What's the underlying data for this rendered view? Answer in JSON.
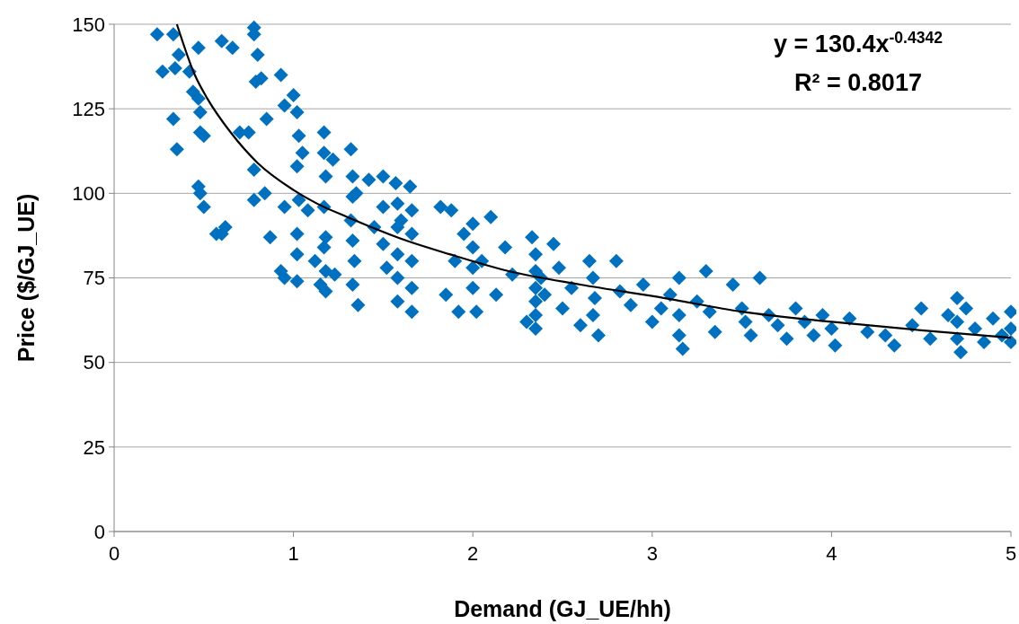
{
  "chart_data": {
    "type": "scatter",
    "xlabel": "Demand (GJ_UE/hh)",
    "ylabel": "Price ($/GJ_UE)",
    "xlim": [
      0,
      5
    ],
    "xticks": [
      0,
      1,
      2,
      3,
      4,
      5
    ],
    "ylim": [
      0,
      150
    ],
    "yticks": [
      0,
      25,
      50,
      75,
      100,
      125,
      150
    ],
    "grid": "y",
    "marker": "diamond",
    "annotations": [
      "y = 130.4x$^{-0.4342}$",
      "R² = 0.8017"
    ],
    "series": [
      {
        "color": "#0070c0",
        "x": [
          0.24,
          0.27,
          0.33,
          0.34,
          0.33,
          0.35,
          0.36,
          0.42,
          0.44,
          0.47,
          0.47,
          0.48,
          0.48,
          0.47,
          0.48,
          0.5,
          0.5,
          0.57,
          0.6,
          0.62,
          0.6,
          0.66,
          0.7,
          0.75,
          0.78,
          0.78,
          0.8,
          0.79,
          0.82,
          0.78,
          0.78,
          0.84,
          0.85,
          0.87,
          0.93,
          0.95,
          0.95,
          0.93,
          0.95,
          1.0,
          1.02,
          1.03,
          1.02,
          1.03,
          1.02,
          1.02,
          1.02,
          1.08,
          1.05,
          1.12,
          1.15,
          1.17,
          1.17,
          1.18,
          1.17,
          1.18,
          1.17,
          1.18,
          1.18,
          1.22,
          1.23,
          1.32,
          1.33,
          1.33,
          1.32,
          1.33,
          1.34,
          1.33,
          1.36,
          1.35,
          1.42,
          1.45,
          1.5,
          1.5,
          1.5,
          1.52,
          1.57,
          1.58,
          1.58,
          1.58,
          1.58,
          1.58,
          1.6,
          1.65,
          1.66,
          1.66,
          1.66,
          1.66,
          1.66,
          1.82,
          1.85,
          1.88,
          1.9,
          1.92,
          1.95,
          2.0,
          2.0,
          2.0,
          2.0,
          2.02,
          2.05,
          2.1,
          2.13,
          2.18,
          2.22,
          2.3,
          2.33,
          2.35,
          2.35,
          2.35,
          2.35,
          2.35,
          2.35,
          2.38,
          2.4,
          2.45,
          2.48,
          2.5,
          2.55,
          2.6,
          2.65,
          2.67,
          2.68,
          2.67,
          2.7,
          2.8,
          2.82,
          2.88,
          2.95,
          3.0,
          3.05,
          3.1,
          3.15,
          3.15,
          3.15,
          3.17,
          3.25,
          3.3,
          3.32,
          3.35,
          3.45,
          3.5,
          3.52,
          3.55,
          3.6,
          3.65,
          3.7,
          3.75,
          3.8,
          3.85,
          3.9,
          3.95,
          4.0,
          4.02,
          4.1,
          4.2,
          4.3,
          4.35,
          4.45,
          4.5,
          4.55,
          4.65,
          4.7,
          4.7,
          4.7,
          4.72,
          4.75,
          4.8,
          4.85,
          4.9,
          4.95,
          5.0,
          5.0,
          5.0
        ],
        "values": [
          147,
          136,
          147,
          137,
          122,
          113,
          141,
          136,
          130,
          143,
          128,
          118,
          124,
          102,
          100,
          96,
          117,
          88,
          88,
          90,
          145,
          143,
          118,
          118,
          149,
          147,
          141,
          133,
          134,
          107,
          98,
          100,
          122,
          87,
          135,
          126,
          96,
          77,
          75,
          129,
          124,
          117,
          108,
          98,
          88,
          82,
          74,
          95,
          112,
          80,
          73,
          118,
          112,
          105,
          96,
          87,
          84,
          77,
          71,
          110,
          76,
          113,
          105,
          99,
          92,
          86,
          80,
          73,
          67,
          100,
          104,
          90,
          105,
          96,
          85,
          78,
          103,
          97,
          90,
          82,
          75,
          68,
          92,
          102,
          95,
          88,
          80,
          72,
          65,
          96,
          70,
          95,
          80,
          65,
          88,
          91,
          84,
          78,
          72,
          65,
          80,
          93,
          70,
          84,
          76,
          62,
          87,
          82,
          77,
          72,
          68,
          64,
          60,
          75,
          70,
          85,
          78,
          66,
          72,
          61,
          80,
          75,
          69,
          64,
          58,
          80,
          71,
          67,
          73,
          62,
          66,
          70,
          75,
          64,
          58,
          54,
          68,
          77,
          65,
          59,
          73,
          66,
          62,
          58,
          75,
          64,
          61,
          57,
          66,
          62,
          58,
          64,
          60,
          55,
          63,
          59,
          58,
          55,
          61,
          66,
          57,
          64,
          69,
          62,
          57,
          53,
          66,
          60,
          56,
          63,
          58,
          65,
          60,
          56
        ]
      },
      {
        "type": "line",
        "marker": "none",
        "color": "#000000",
        "x": [
          0.35,
          0.45,
          0.52,
          0.65,
          0.8,
          1.0,
          1.13,
          1.3,
          1.63,
          1.87,
          2.2,
          2.6,
          3.07,
          3.5,
          4,
          4.5,
          5
        ],
        "values": [
          150,
          135,
          128,
          118,
          109,
          101,
          97,
          93,
          86,
          82,
          77,
          73,
          69,
          65,
          62,
          59.5,
          57.3
        ]
      }
    ]
  }
}
